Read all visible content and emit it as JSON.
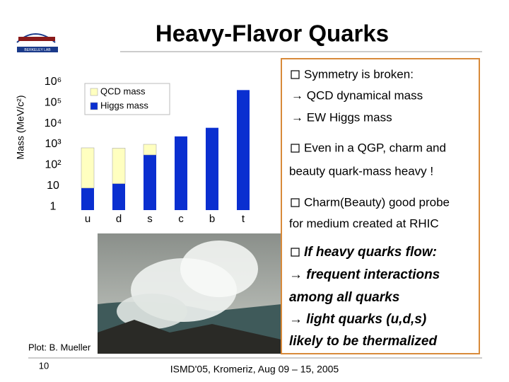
{
  "header": {
    "title": "Heavy-Flavor Quarks",
    "logo": "BERKELEY LAB"
  },
  "chart_data": {
    "type": "bar",
    "stacked": true,
    "log_scale": true,
    "y_label": "Mass (MeV/c²)",
    "categories": [
      "u",
      "d",
      "s",
      "c",
      "b",
      "t"
    ],
    "series": [
      {
        "name": "Higgs mass",
        "color": "#0a2fd0",
        "values": [
          8,
          13,
          310,
          2400,
          6200,
          400000
        ]
      },
      {
        "name": "QCD mass",
        "color": "#ffffc0",
        "values": [
          670,
          640,
          690,
          0,
          0,
          0
        ]
      }
    ],
    "ylim": [
      0.7,
      5000000
    ],
    "yticks": [
      1,
      10,
      {
        "value": 100,
        "label": "10²"
      },
      {
        "value": 1000,
        "label": "10³"
      },
      {
        "value": 10000,
        "label": "10⁴"
      },
      {
        "value": 100000,
        "label": "10⁵"
      },
      {
        "value": 1000000,
        "label": "10⁶"
      }
    ]
  },
  "caption": "Plot: B. Mueller",
  "panel": {
    "lines": [
      "Symmetry is broken:",
      "→ QCD dynamical mass",
      "→ EW Higgs mass",
      "Even in a QGP, charm and",
      "beauty quark-mass heavy !",
      "Charm(Beauty) good probe",
      "for medium created at RHIC",
      "If heavy quarks flow:",
      "→ frequent interactions",
      "among all quarks",
      "→ light quarks (u,d,s)",
      "likely to be thermalized"
    ]
  },
  "footer": {
    "page": "10",
    "conference": "ISMD'05, Kromeriz, Aug 09 – 15, 2005"
  }
}
